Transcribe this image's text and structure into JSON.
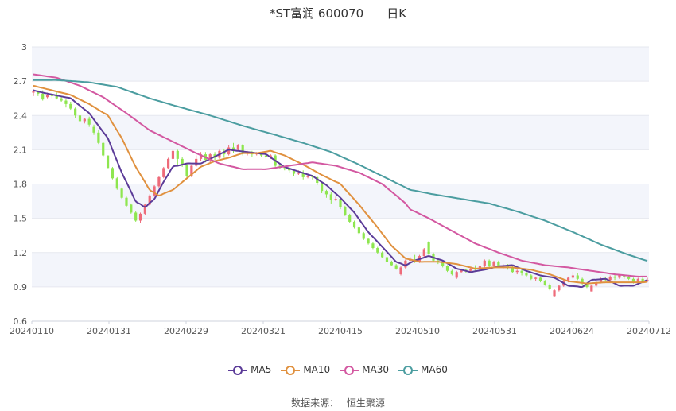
{
  "header": {
    "stock": "*ST富润 600070",
    "period": "日K"
  },
  "source": {
    "label": "数据来源：",
    "value": "恒生聚源"
  },
  "chart_data": {
    "type": "candlestick",
    "ylim": [
      0.6,
      3.0
    ],
    "yticks": [
      "0.6",
      "0.9",
      "1.2",
      "1.5",
      "1.8",
      "2.1",
      "2.4",
      "2.7",
      "3"
    ],
    "xticks": [
      "20240110",
      "20240131",
      "20240229",
      "20240321",
      "20240415",
      "20240510",
      "20240531",
      "20240624",
      "20240712"
    ],
    "up_color": "#ee6b7a",
    "down_color": "#8ee64f",
    "candles": [
      [
        2.6,
        2.61,
        2.57,
        2.63
      ],
      [
        2.61,
        2.59,
        2.57,
        2.62
      ],
      [
        2.59,
        2.54,
        2.53,
        2.62
      ],
      [
        2.56,
        2.58,
        2.55,
        2.6
      ],
      [
        2.58,
        2.57,
        2.55,
        2.59
      ],
      [
        2.57,
        2.55,
        2.54,
        2.6
      ],
      [
        2.55,
        2.53,
        2.52,
        2.57
      ],
      [
        2.53,
        2.5,
        2.47,
        2.54
      ],
      [
        2.5,
        2.46,
        2.45,
        2.52
      ],
      [
        2.46,
        2.4,
        2.38,
        2.47
      ],
      [
        2.4,
        2.35,
        2.32,
        2.42
      ],
      [
        2.35,
        2.37,
        2.33,
        2.38
      ],
      [
        2.37,
        2.32,
        2.3,
        2.39
      ],
      [
        2.3,
        2.25,
        2.23,
        2.32
      ],
      [
        2.25,
        2.16,
        2.15,
        2.27
      ],
      [
        2.16,
        2.05,
        2.04,
        2.17
      ],
      [
        2.05,
        1.94,
        1.94,
        2.05
      ],
      [
        1.94,
        1.85,
        1.84,
        1.95
      ],
      [
        1.85,
        1.76,
        1.75,
        1.86
      ],
      [
        1.76,
        1.68,
        1.67,
        1.77
      ],
      [
        1.68,
        1.61,
        1.6,
        1.69
      ],
      [
        1.62,
        1.55,
        1.54,
        1.63
      ],
      [
        1.55,
        1.48,
        1.47,
        1.56
      ],
      [
        1.48,
        1.54,
        1.46,
        1.55
      ],
      [
        1.54,
        1.62,
        1.53,
        1.63
      ],
      [
        1.62,
        1.7,
        1.61,
        1.71
      ],
      [
        1.7,
        1.78,
        1.69,
        1.79
      ],
      [
        1.78,
        1.86,
        1.77,
        1.87
      ],
      [
        1.86,
        1.94,
        1.85,
        1.95
      ],
      [
        1.94,
        2.02,
        1.93,
        2.03
      ],
      [
        2.02,
        2.09,
        2.01,
        2.1
      ],
      [
        2.09,
        2.02,
        1.96,
        2.1
      ],
      [
        2.02,
        1.97,
        1.95,
        2.04
      ],
      [
        1.97,
        1.87,
        1.85,
        1.98
      ],
      [
        1.87,
        1.96,
        1.86,
        1.97
      ],
      [
        1.96,
        2.02,
        1.95,
        2.05
      ],
      [
        2.02,
        2.06,
        2.0,
        2.08
      ],
      [
        2.06,
        2.01,
        1.99,
        2.08
      ],
      [
        2.01,
        2.06,
        1.99,
        2.07
      ],
      [
        2.06,
        2.03,
        2.01,
        2.08
      ],
      [
        2.03,
        2.09,
        2.02,
        2.1
      ],
      [
        2.09,
        2.06,
        2.03,
        2.11
      ],
      [
        2.06,
        2.12,
        2.05,
        2.14
      ],
      [
        2.12,
        2.1,
        2.07,
        2.16
      ],
      [
        2.1,
        2.14,
        2.09,
        2.15
      ],
      [
        2.14,
        2.07,
        2.05,
        2.15
      ],
      [
        2.07,
        2.08,
        2.05,
        2.09
      ],
      [
        2.08,
        2.06,
        2.04,
        2.09
      ],
      [
        2.06,
        2.07,
        2.05,
        2.08
      ],
      [
        2.07,
        2.05,
        2.04,
        2.08
      ],
      [
        2.05,
        2.04,
        2.02,
        2.07
      ],
      [
        2.04,
        2.05,
        2.02,
        2.06
      ],
      [
        2.05,
        1.96,
        1.95,
        2.06
      ],
      [
        1.96,
        1.95,
        1.93,
        1.98
      ],
      [
        1.95,
        1.94,
        1.92,
        1.96
      ],
      [
        1.94,
        1.92,
        1.9,
        1.95
      ],
      [
        1.92,
        1.89,
        1.87,
        1.93
      ],
      [
        1.89,
        1.9,
        1.88,
        1.92
      ],
      [
        1.9,
        1.86,
        1.84,
        1.92
      ],
      [
        1.86,
        1.87,
        1.85,
        1.88
      ],
      [
        1.87,
        1.86,
        1.84,
        1.88
      ],
      [
        1.86,
        1.81,
        1.79,
        1.87
      ],
      [
        1.81,
        1.74,
        1.72,
        1.82
      ],
      [
        1.74,
        1.71,
        1.68,
        1.75
      ],
      [
        1.71,
        1.66,
        1.63,
        1.73
      ],
      [
        1.66,
        1.67,
        1.65,
        1.69
      ],
      [
        1.67,
        1.6,
        1.58,
        1.68
      ],
      [
        1.6,
        1.53,
        1.52,
        1.61
      ],
      [
        1.53,
        1.47,
        1.46,
        1.54
      ],
      [
        1.47,
        1.42,
        1.41,
        1.48
      ],
      [
        1.42,
        1.37,
        1.36,
        1.43
      ],
      [
        1.37,
        1.32,
        1.31,
        1.38
      ],
      [
        1.32,
        1.28,
        1.27,
        1.33
      ],
      [
        1.28,
        1.24,
        1.23,
        1.29
      ],
      [
        1.24,
        1.2,
        1.19,
        1.25
      ],
      [
        1.2,
        1.16,
        1.15,
        1.21
      ],
      [
        1.16,
        1.12,
        1.11,
        1.17
      ],
      [
        1.12,
        1.09,
        1.08,
        1.13
      ],
      [
        1.09,
        1.06,
        1.05,
        1.1
      ],
      [
        1.01,
        1.07,
        1.0,
        1.08
      ],
      [
        1.07,
        1.13,
        1.06,
        1.14
      ],
      [
        1.13,
        1.14,
        1.12,
        1.16
      ],
      [
        1.14,
        1.12,
        1.11,
        1.18
      ],
      [
        1.12,
        1.17,
        1.11,
        1.18
      ],
      [
        1.17,
        1.23,
        1.16,
        1.24
      ],
      [
        1.29,
        1.19,
        1.18,
        1.3
      ],
      [
        1.19,
        1.13,
        1.12,
        1.2
      ],
      [
        1.13,
        1.12,
        1.1,
        1.14
      ],
      [
        1.12,
        1.08,
        1.07,
        1.13
      ],
      [
        1.08,
        1.04,
        1.03,
        1.09
      ],
      [
        1.04,
        1.01,
        1.0,
        1.05
      ],
      [
        0.98,
        1.03,
        0.97,
        1.04
      ],
      [
        1.03,
        1.05,
        1.02,
        1.06
      ],
      [
        1.05,
        1.04,
        1.02,
        1.06
      ],
      [
        1.04,
        1.06,
        1.03,
        1.07
      ],
      [
        1.06,
        1.05,
        1.04,
        1.09
      ],
      [
        1.05,
        1.08,
        1.04,
        1.09
      ],
      [
        1.08,
        1.13,
        1.07,
        1.14
      ],
      [
        1.13,
        1.08,
        1.07,
        1.14
      ],
      [
        1.08,
        1.12,
        1.07,
        1.13
      ],
      [
        1.12,
        1.08,
        1.07,
        1.13
      ],
      [
        1.08,
        1.09,
        1.06,
        1.1
      ],
      [
        1.09,
        1.07,
        1.05,
        1.1
      ],
      [
        1.07,
        1.03,
        1.02,
        1.08
      ],
      [
        1.03,
        1.04,
        1.01,
        1.05
      ],
      [
        1.04,
        1.02,
        1.0,
        1.05
      ],
      [
        1.02,
        1.0,
        0.99,
        1.03
      ],
      [
        1.0,
        0.97,
        0.96,
        1.01
      ],
      [
        0.97,
        0.98,
        0.95,
        0.99
      ],
      [
        0.98,
        0.95,
        0.94,
        0.99
      ],
      [
        0.95,
        0.92,
        0.91,
        0.96
      ],
      [
        0.92,
        0.88,
        0.87,
        0.93
      ],
      [
        0.82,
        0.87,
        0.81,
        0.88
      ],
      [
        0.87,
        0.91,
        0.86,
        0.92
      ],
      [
        0.91,
        0.95,
        0.9,
        0.96
      ],
      [
        0.95,
        0.98,
        0.94,
        0.99
      ],
      [
        0.98,
        1.0,
        0.97,
        1.03
      ],
      [
        1.0,
        0.97,
        0.96,
        1.02
      ],
      [
        0.97,
        0.93,
        0.92,
        0.98
      ],
      [
        0.93,
        0.9,
        0.89,
        0.94
      ],
      [
        0.86,
        0.91,
        0.86,
        0.92
      ],
      [
        0.91,
        0.94,
        0.9,
        0.95
      ],
      [
        0.94,
        0.97,
        0.93,
        0.98
      ],
      [
        0.97,
        0.96,
        0.95,
        0.99
      ],
      [
        0.96,
        0.99,
        0.95,
        1.0
      ],
      [
        0.99,
        0.98,
        0.96,
        1.02
      ],
      [
        0.98,
        1.0,
        0.97,
        1.01
      ],
      [
        1.0,
        0.99,
        0.97,
        1.01
      ],
      [
        0.99,
        0.97,
        0.96,
        1.0
      ],
      [
        0.97,
        0.94,
        0.93,
        0.98
      ],
      [
        0.94,
        0.97,
        0.93,
        0.98
      ],
      [
        0.97,
        0.95,
        0.94,
        0.99
      ],
      [
        0.95,
        0.96,
        0.94,
        0.98
      ]
    ],
    "series": [
      {
        "name": "MA5",
        "color": "#5b3b98",
        "anchors": [
          [
            0,
            2.62
          ],
          [
            2,
            2.6
          ],
          [
            8,
            2.55
          ],
          [
            12,
            2.42
          ],
          [
            16,
            2.2
          ],
          [
            19,
            1.9
          ],
          [
            22,
            1.65
          ],
          [
            24,
            1.6
          ],
          [
            26,
            1.67
          ],
          [
            28,
            1.82
          ],
          [
            30,
            1.95
          ],
          [
            33,
            1.98
          ],
          [
            36,
            1.98
          ],
          [
            39,
            2.04
          ],
          [
            42,
            2.1
          ],
          [
            46,
            2.08
          ],
          [
            50,
            2.06
          ],
          [
            54,
            1.95
          ],
          [
            57,
            1.91
          ],
          [
            60,
            1.87
          ],
          [
            63,
            1.79
          ],
          [
            66,
            1.68
          ],
          [
            69,
            1.55
          ],
          [
            72,
            1.38
          ],
          [
            75,
            1.25
          ],
          [
            78,
            1.12
          ],
          [
            80,
            1.09
          ],
          [
            82,
            1.13
          ],
          [
            85,
            1.17
          ],
          [
            88,
            1.13
          ],
          [
            91,
            1.06
          ],
          [
            94,
            1.03
          ],
          [
            97,
            1.05
          ],
          [
            100,
            1.08
          ],
          [
            103,
            1.09
          ],
          [
            106,
            1.04
          ],
          [
            109,
            1.0
          ],
          [
            112,
            0.98
          ],
          [
            115,
            0.91
          ],
          [
            118,
            0.9
          ],
          [
            120,
            0.96
          ],
          [
            123,
            0.97
          ],
          [
            126,
            0.91
          ],
          [
            129,
            0.91
          ],
          [
            132,
            0.96
          ],
          [
            135,
            0.99
          ],
          [
            138,
            0.98
          ],
          [
            141,
            0.96
          ]
        ]
      },
      {
        "name": "MA10",
        "color": "#e0913f",
        "anchors": [
          [
            0,
            2.66
          ],
          [
            3,
            2.63
          ],
          [
            8,
            2.58
          ],
          [
            12,
            2.5
          ],
          [
            16,
            2.4
          ],
          [
            19,
            2.2
          ],
          [
            22,
            1.95
          ],
          [
            25,
            1.75
          ],
          [
            27,
            1.7
          ],
          [
            30,
            1.75
          ],
          [
            33,
            1.85
          ],
          [
            36,
            1.95
          ],
          [
            39,
            2.0
          ],
          [
            42,
            2.03
          ],
          [
            45,
            2.07
          ],
          [
            48,
            2.07
          ],
          [
            51,
            2.09
          ],
          [
            54,
            2.05
          ],
          [
            58,
            1.97
          ],
          [
            62,
            1.88
          ],
          [
            66,
            1.8
          ],
          [
            70,
            1.62
          ],
          [
            74,
            1.42
          ],
          [
            77,
            1.26
          ],
          [
            80,
            1.15
          ],
          [
            83,
            1.12
          ],
          [
            87,
            1.12
          ],
          [
            91,
            1.1
          ],
          [
            95,
            1.06
          ],
          [
            99,
            1.07
          ],
          [
            103,
            1.07
          ],
          [
            107,
            1.05
          ],
          [
            111,
            1.01
          ],
          [
            115,
            0.95
          ],
          [
            119,
            0.93
          ],
          [
            123,
            0.94
          ],
          [
            127,
            0.94
          ],
          [
            131,
            0.94
          ],
          [
            135,
            0.96
          ],
          [
            138,
            0.97
          ],
          [
            141,
            0.97
          ]
        ]
      },
      {
        "name": "MA30",
        "color": "#d358a1",
        "anchors": [
          [
            0,
            2.76
          ],
          [
            5,
            2.73
          ],
          [
            10,
            2.66
          ],
          [
            15,
            2.56
          ],
          [
            20,
            2.42
          ],
          [
            25,
            2.27
          ],
          [
            30,
            2.17
          ],
          [
            35,
            2.07
          ],
          [
            40,
            1.98
          ],
          [
            45,
            1.93
          ],
          [
            50,
            1.93
          ],
          [
            55,
            1.96
          ],
          [
            60,
            1.99
          ],
          [
            65,
            1.96
          ],
          [
            70,
            1.9
          ],
          [
            75,
            1.8
          ],
          [
            78,
            1.7
          ],
          [
            80,
            1.63
          ],
          [
            81,
            1.58
          ],
          [
            85,
            1.5
          ],
          [
            90,
            1.39
          ],
          [
            95,
            1.28
          ],
          [
            100,
            1.2
          ],
          [
            105,
            1.13
          ],
          [
            110,
            1.09
          ],
          [
            115,
            1.07
          ],
          [
            120,
            1.04
          ],
          [
            125,
            1.01
          ],
          [
            130,
            0.99
          ],
          [
            135,
            0.99
          ],
          [
            141,
            0.97
          ]
        ]
      },
      {
        "name": "MA60",
        "color": "#4b9da0",
        "anchors": [
          [
            0,
            2.71
          ],
          [
            5,
            2.71
          ],
          [
            12,
            2.69
          ],
          [
            18,
            2.65
          ],
          [
            25,
            2.55
          ],
          [
            30,
            2.49
          ],
          [
            38,
            2.4
          ],
          [
            45,
            2.31
          ],
          [
            52,
            2.23
          ],
          [
            58,
            2.16
          ],
          [
            64,
            2.08
          ],
          [
            70,
            1.97
          ],
          [
            76,
            1.85
          ],
          [
            80,
            1.77
          ],
          [
            81,
            1.75
          ],
          [
            86,
            1.71
          ],
          [
            92,
            1.67
          ],
          [
            98,
            1.63
          ],
          [
            104,
            1.56
          ],
          [
            110,
            1.48
          ],
          [
            116,
            1.38
          ],
          [
            122,
            1.27
          ],
          [
            128,
            1.18
          ],
          [
            134,
            1.1
          ],
          [
            141,
            1.03
          ]
        ]
      }
    ]
  }
}
